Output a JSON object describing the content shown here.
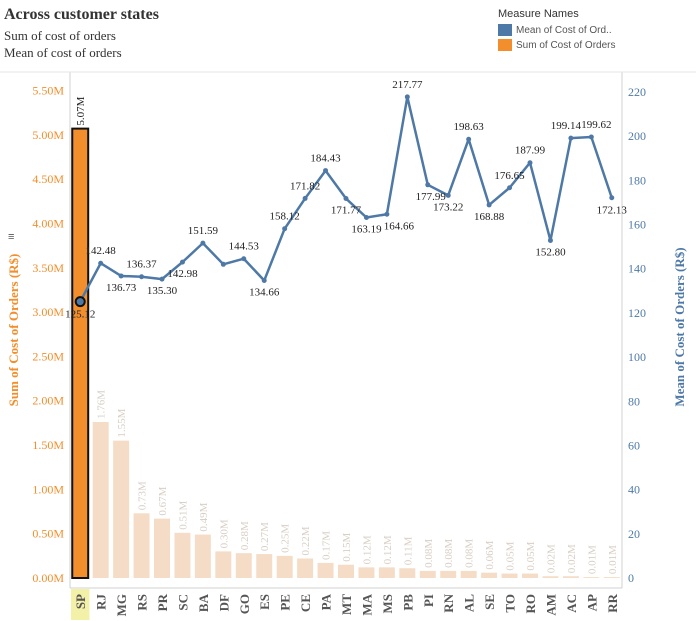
{
  "title": "Across customer states",
  "subtitles": [
    "Sum of cost of orders",
    "Mean of cost of orders"
  ],
  "legend": {
    "title": "Measure Names",
    "items": [
      {
        "label": "Mean of Cost of Ord..",
        "color": "#4e79a7"
      },
      {
        "label": "Sum of Cost of Orders",
        "color": "#f28e2b"
      }
    ]
  },
  "chart_data": {
    "type": "bar",
    "categories": [
      "SP",
      "RJ",
      "MG",
      "RS",
      "PR",
      "SC",
      "BA",
      "DF",
      "GO",
      "ES",
      "PE",
      "CE",
      "PA",
      "MT",
      "MA",
      "MS",
      "PB",
      "PI",
      "RN",
      "AL",
      "SE",
      "TO",
      "RO",
      "AM",
      "AC",
      "AP",
      "RR"
    ],
    "series": [
      {
        "name": "Sum of Cost of Orders",
        "type": "bar",
        "axis": "left",
        "values": [
          5.07,
          1.76,
          1.55,
          0.73,
          0.67,
          0.51,
          0.49,
          0.3,
          0.28,
          0.27,
          0.25,
          0.22,
          0.17,
          0.15,
          0.12,
          0.12,
          0.11,
          0.08,
          0.08,
          0.08,
          0.06,
          0.05,
          0.05,
          0.02,
          0.02,
          0.01,
          0.01
        ],
        "labels": [
          "5.07M",
          "1.76M",
          "1.55M",
          "0.73M",
          "0.67M",
          "0.51M",
          "0.49M",
          "0.30M",
          "0.28M",
          "0.27M",
          "0.25M",
          "0.22M",
          "0.17M",
          "0.15M",
          "0.12M",
          "0.12M",
          "0.11M",
          "0.08M",
          "0.08M",
          "0.08M",
          "0.06M",
          "0.05M",
          "0.05M",
          "0.02M",
          "0.02M",
          "0.01M",
          "0.01M"
        ]
      },
      {
        "name": "Mean of Cost of Orders",
        "type": "line",
        "axis": "right",
        "values": [
          125.12,
          142.48,
          136.73,
          136.37,
          135.3,
          142.98,
          151.59,
          142.0,
          144.53,
          134.66,
          158.12,
          171.82,
          184.43,
          171.77,
          163.19,
          164.66,
          217.77,
          177.99,
          173.22,
          198.63,
          168.88,
          176.65,
          187.99,
          152.8,
          199.14,
          199.62,
          172.13
        ],
        "labels": [
          "125.12",
          "142.48",
          "136.73",
          "136.37",
          "135.30",
          "142.98",
          "151.59",
          "",
          "144.53",
          "134.66",
          "158.12",
          "171.82",
          "184.43",
          "171.77",
          "163.19",
          "164.66",
          "217.77",
          "177.99",
          "173.22",
          "198.63",
          "168.88",
          "176.65",
          "187.99",
          "152.80",
          "199.14",
          "199.62",
          "172.13"
        ]
      }
    ],
    "y_left": {
      "label": "Sum of Cost of Orders (R$)",
      "range": [
        0,
        5.7
      ],
      "ticks": [
        0,
        0.5,
        1.0,
        1.5,
        2.0,
        2.5,
        3.0,
        3.5,
        4.0,
        4.5,
        5.0,
        5.5
      ],
      "tick_labels": [
        "0.00M",
        "0.50M",
        "1.00M",
        "1.50M",
        "2.00M",
        "2.50M",
        "3.00M",
        "3.50M",
        "4.00M",
        "4.50M",
        "5.00M",
        "5.50M"
      ]
    },
    "y_right": {
      "label": "Mean of Cost of Orders (R$)",
      "range": [
        0,
        228
      ],
      "ticks": [
        0,
        20,
        40,
        60,
        80,
        100,
        120,
        140,
        160,
        180,
        200,
        220
      ],
      "tick_labels": [
        "0",
        "20",
        "40",
        "60",
        "80",
        "100",
        "120",
        "140",
        "160",
        "180",
        "200",
        "220"
      ]
    },
    "highlighted_category": "SP",
    "grid": false,
    "legend_position": "top-right"
  }
}
